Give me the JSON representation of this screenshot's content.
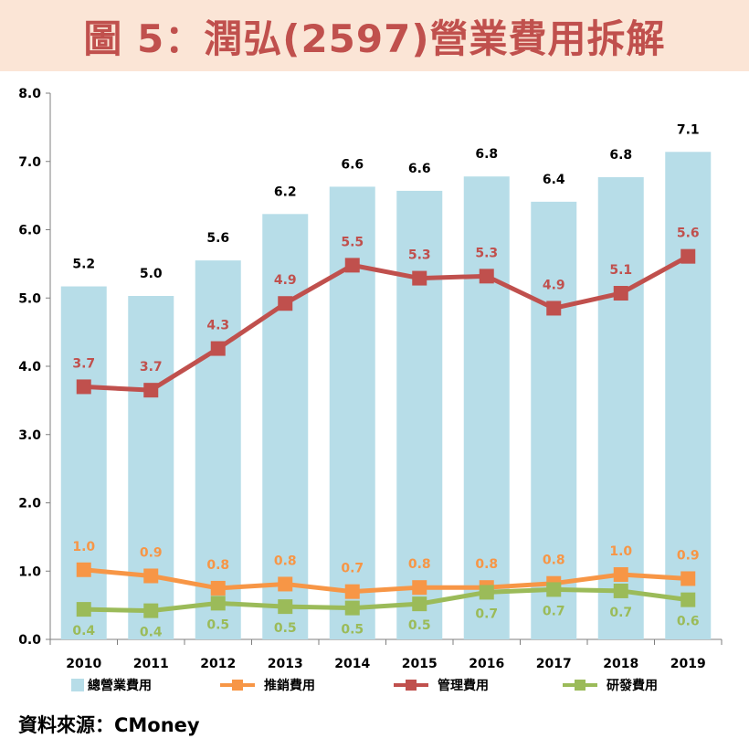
{
  "title": "圖 5：潤弘(2597)營業費用拆解",
  "source": "資料來源：CMoney",
  "colors": {
    "title_bg": "#fbe5d6",
    "title_text": "#c0504d",
    "total": "#b7dde8",
    "sales": "#f79646",
    "admin": "#c0504d",
    "rnd": "#9bbb59"
  },
  "chart_data": {
    "type": "bar+line",
    "categories": [
      "2010",
      "2011",
      "2012",
      "2013",
      "2014",
      "2015",
      "2016",
      "2017",
      "2018",
      "2019"
    ],
    "ylim": [
      0,
      8
    ],
    "yticks": [
      "0.0",
      "1.0",
      "2.0",
      "3.0",
      "4.0",
      "5.0",
      "6.0",
      "7.0",
      "8.0"
    ],
    "legend_position": "bottom",
    "series": [
      {
        "name": "總營業費用",
        "kind": "bar",
        "color": "#b7dde8",
        "label_color": "#000000",
        "values": [
          5.17,
          5.03,
          5.55,
          6.23,
          6.63,
          6.57,
          6.78,
          6.41,
          6.77,
          7.14
        ],
        "labels": [
          "5.2",
          "5.0",
          "5.6",
          "6.2",
          "6.6",
          "6.6",
          "6.8",
          "6.4",
          "6.8",
          "7.1"
        ]
      },
      {
        "name": "推銷費用",
        "kind": "line",
        "color": "#f79646",
        "label_color": "#f79646",
        "values": [
          1.02,
          0.93,
          0.75,
          0.81,
          0.7,
          0.76,
          0.76,
          0.82,
          0.95,
          0.89
        ],
        "labels": [
          "1.0",
          "0.9",
          "0.8",
          "0.8",
          "0.7",
          "0.8",
          "0.8",
          "0.8",
          "1.0",
          "0.9"
        ]
      },
      {
        "name": "管理費用",
        "kind": "line",
        "color": "#c0504d",
        "label_color": "#c0504d",
        "values": [
          3.7,
          3.65,
          4.26,
          4.92,
          5.48,
          5.29,
          5.32,
          4.85,
          5.07,
          5.61
        ],
        "labels": [
          "3.7",
          "3.7",
          "4.3",
          "4.9",
          "5.5",
          "5.3",
          "5.3",
          "4.9",
          "5.1",
          "5.6"
        ]
      },
      {
        "name": "研發費用",
        "kind": "line",
        "color": "#9bbb59",
        "label_color": "#9bbb59",
        "values": [
          0.44,
          0.42,
          0.53,
          0.48,
          0.46,
          0.52,
          0.69,
          0.73,
          0.71,
          0.58
        ],
        "labels": [
          "0.4",
          "0.4",
          "0.5",
          "0.5",
          "0.5",
          "0.5",
          "0.7",
          "0.7",
          "0.7",
          "0.6"
        ]
      }
    ]
  }
}
